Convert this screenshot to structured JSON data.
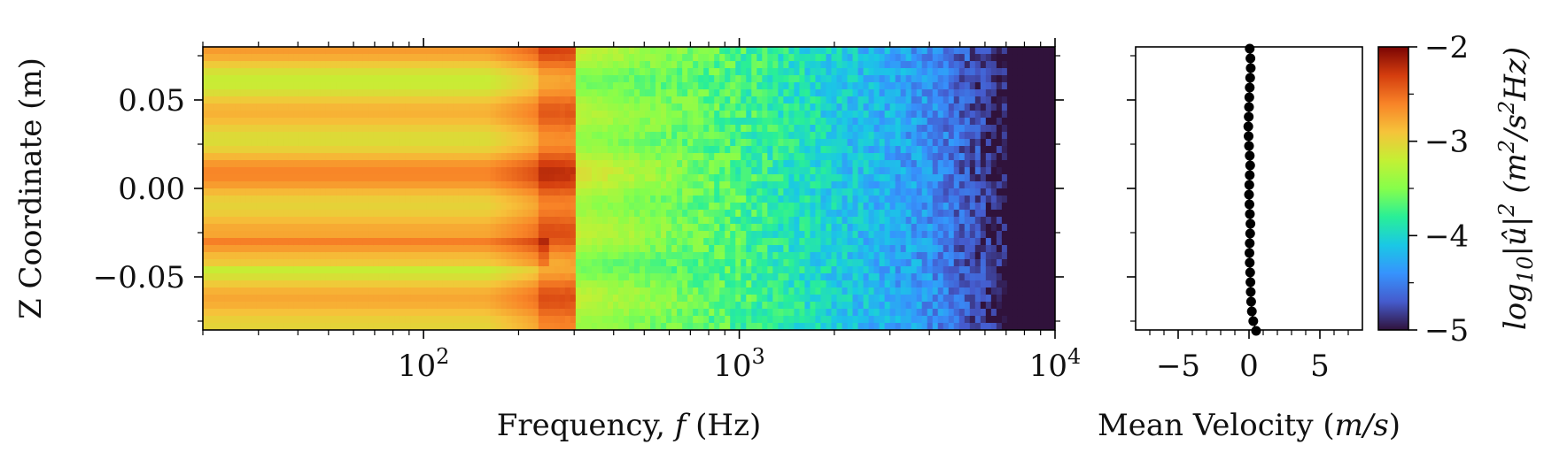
{
  "chart_data": [
    {
      "type": "heatmap",
      "title": "",
      "xlabel": "Frequency, f (Hz)",
      "xlabel_parts": [
        "Frequency, ",
        "f",
        " (Hz)"
      ],
      "ylabel": "Z Coordinate (m)",
      "x_scale": "log",
      "xlim": [
        20,
        10000
      ],
      "ylim": [
        -0.08,
        0.08
      ],
      "x_ticks": [
        {
          "value": 100,
          "base": "10",
          "exp": "2"
        },
        {
          "value": 1000,
          "base": "10",
          "exp": "3"
        },
        {
          "value": 10000,
          "base": "10",
          "exp": "4"
        }
      ],
      "y_ticks": [
        {
          "value": 0.05,
          "label": "0.05"
        },
        {
          "value": 0.0,
          "label": "0.00"
        },
        {
          "value": -0.05,
          "label": "−0.05"
        }
      ],
      "colormap": "turbo",
      "z_label": "log10|û|² (m²/s²Hz)",
      "z_label_parts": {
        "log": "log",
        "sub": "10",
        "mid": "|û|",
        "sup": "2",
        "unit_open": " (m",
        "unit_sup": "2",
        "unit_close": "/s",
        "unit_sup2": "2",
        "unit_end": "Hz)"
      },
      "z_range": [
        -5,
        -2
      ],
      "z_ticks": [
        {
          "value": -2,
          "label": "−2"
        },
        {
          "value": -3,
          "label": "−3"
        },
        {
          "value": -4,
          "label": "−4"
        },
        {
          "value": -5,
          "label": "−5"
        }
      ],
      "spectrum_trend": {
        "low_frequency_level": -2.9,
        "peak_frequency_hz": [
          230,
          300
        ],
        "peak_level": -2.5,
        "level_at_1000hz": -3.7,
        "level_at_4000hz": -4.4,
        "floor_frequency_hz": 7000,
        "floor_level": -5
      }
    },
    {
      "type": "scatter",
      "title": "",
      "xlabel": "Mean Velocity (m/s)",
      "xlabel_parts": [
        "Mean Velocity (",
        "m/s",
        ")"
      ],
      "ylabel": "",
      "xlim": [
        -8,
        8
      ],
      "ylim": [
        -0.08,
        0.08
      ],
      "x_ticks": [
        {
          "value": -5,
          "label": "−5"
        },
        {
          "value": 0,
          "label": "0"
        },
        {
          "value": 5,
          "label": "5"
        }
      ],
      "marker_color": "#000000",
      "points": [
        {
          "x": 0.05,
          "y": 0.079
        },
        {
          "x": 0.1,
          "y": 0.0735
        },
        {
          "x": 0.12,
          "y": 0.068
        },
        {
          "x": 0.08,
          "y": 0.0625
        },
        {
          "x": 0.05,
          "y": 0.057
        },
        {
          "x": 0.02,
          "y": 0.0515
        },
        {
          "x": 0.0,
          "y": 0.046
        },
        {
          "x": -0.02,
          "y": 0.0405
        },
        {
          "x": -0.05,
          "y": 0.035
        },
        {
          "x": -0.03,
          "y": 0.0295
        },
        {
          "x": 0.0,
          "y": 0.024
        },
        {
          "x": 0.05,
          "y": 0.0185
        },
        {
          "x": 0.08,
          "y": 0.013
        },
        {
          "x": 0.05,
          "y": 0.0075
        },
        {
          "x": 0.02,
          "y": 0.002
        },
        {
          "x": 0.0,
          "y": -0.0035
        },
        {
          "x": 0.03,
          "y": -0.009
        },
        {
          "x": 0.06,
          "y": -0.0145
        },
        {
          "x": 0.1,
          "y": -0.02
        },
        {
          "x": 0.08,
          "y": -0.0255
        },
        {
          "x": 0.05,
          "y": -0.031
        },
        {
          "x": 0.03,
          "y": -0.0365
        },
        {
          "x": 0.05,
          "y": -0.042
        },
        {
          "x": 0.08,
          "y": -0.0475
        },
        {
          "x": 0.1,
          "y": -0.053
        },
        {
          "x": 0.12,
          "y": -0.0585
        },
        {
          "x": 0.15,
          "y": -0.064
        },
        {
          "x": 0.2,
          "y": -0.0695
        },
        {
          "x": 0.3,
          "y": -0.075
        },
        {
          "x": 0.5,
          "y": -0.0805
        }
      ]
    }
  ]
}
